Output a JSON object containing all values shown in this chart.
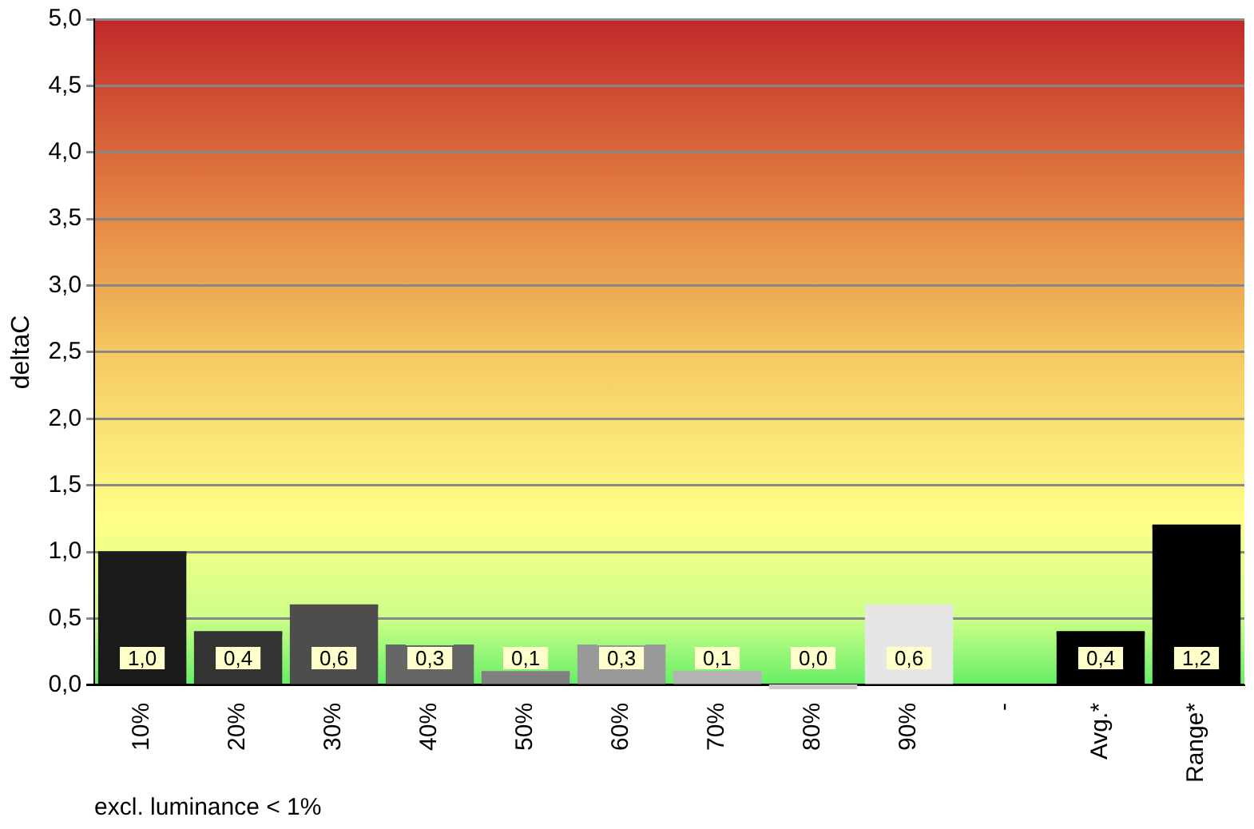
{
  "chart_data": {
    "type": "bar",
    "ylabel": "deltaC",
    "xlabel": "excl. luminance < 1%",
    "categories": [
      "10%",
      "20%",
      "30%",
      "40%",
      "50%",
      "60%",
      "70%",
      "80%",
      "90%",
      "-",
      "Avg.*",
      "Range*"
    ],
    "values": [
      1.0,
      0.4,
      0.6,
      0.3,
      0.1,
      0.3,
      0.1,
      0.0,
      0.6,
      null,
      0.4,
      1.2
    ],
    "colors": [
      "#1a1a1a",
      "#333333",
      "#4d4d4d",
      "#666666",
      "#808080",
      "#999999",
      "#b3b3b3",
      "#cccccc",
      "#e6e6e6",
      "#000000",
      "#000000",
      "#000000"
    ],
    "value_labels": [
      "1,0",
      "0,4",
      "0,6",
      "0,3",
      "0,1",
      "0,3",
      "0,1",
      "0,0",
      "0,6",
      null,
      "0,4",
      "1,2"
    ],
    "ylim": [
      0,
      5
    ],
    "yticks": [
      {
        "value": 0,
        "label": "0,0"
      },
      {
        "value": 0.5,
        "label": "0,5"
      },
      {
        "value": 1,
        "label": "1,0"
      },
      {
        "value": 1.5,
        "label": "1,5"
      },
      {
        "value": 2,
        "label": "2,0"
      },
      {
        "value": 2.5,
        "label": "2,5"
      },
      {
        "value": 3,
        "label": "3,0"
      },
      {
        "value": 3.5,
        "label": "3,5"
      },
      {
        "value": 4,
        "label": "4,0"
      },
      {
        "value": 4.5,
        "label": "4,5"
      },
      {
        "value": 5,
        "label": "5,0"
      }
    ],
    "grid": "y",
    "legend": false
  }
}
